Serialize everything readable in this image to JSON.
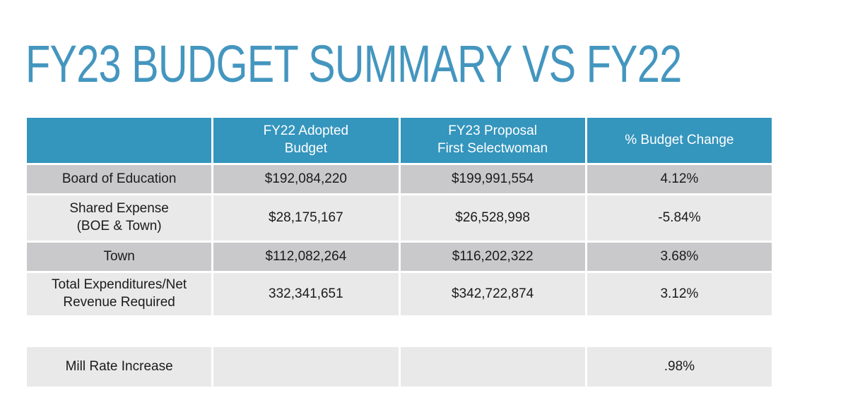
{
  "slide": {
    "title": "FY23 BUDGET SUMMARY VS FY22"
  },
  "colors": {
    "title_teal": "#4496BF",
    "header_teal": "#3495BD",
    "row_dark_gray": "#C9C9CB",
    "row_light_gray": "#E9E9EA",
    "header_text": "#FFFFFF",
    "body_text": "#1B1B1B",
    "background": "#FFFFFF"
  },
  "table": {
    "header": {
      "col1": "",
      "col2": "FY22 Adopted\nBudget",
      "col3": "FY23 Proposal\nFirst Selectwoman",
      "col4": "% Budget Change"
    },
    "rows": [
      {
        "label": "Board of Education",
        "fy22": "$192,084,220",
        "fy23": "$199,991,554",
        "change": "4.12%"
      },
      {
        "label": "Shared Expense\n(BOE & Town)",
        "fy22": "$28,175,167",
        "fy23": "$26,528,998",
        "change": "-5.84%"
      },
      {
        "label": "Town",
        "fy22": "$112,082,264",
        "fy23": "$116,202,322",
        "change": "3.68%"
      },
      {
        "label": "Total Expenditures/Net\nRevenue Required",
        "fy22": "332,341,651",
        "fy23": "$342,722,874",
        "change": "3.12%"
      }
    ]
  },
  "mill_row": {
    "label": "Mill Rate Increase",
    "fy22": "",
    "fy23": "",
    "change": ".98%"
  },
  "chart_data": {
    "type": "table",
    "title": "FY23 BUDGET SUMMARY VS FY22",
    "columns": [
      "",
      "FY22 Adopted Budget",
      "FY23 Proposal First Selectwoman",
      "% Budget Change"
    ],
    "rows": [
      [
        "Board of Education",
        "$192,084,220",
        "$199,991,554",
        "4.12%"
      ],
      [
        "Shared Expense (BOE & Town)",
        "$28,175,167",
        "$26,528,998",
        "-5.84%"
      ],
      [
        "Town",
        "$112,082,264",
        "$116,202,322",
        "3.68%"
      ],
      [
        "Total Expenditures/Net Revenue Required",
        "332,341,651",
        "$342,722,874",
        "3.12%"
      ],
      [
        "Mill Rate Increase",
        "",
        "",
        ".98%"
      ]
    ]
  }
}
